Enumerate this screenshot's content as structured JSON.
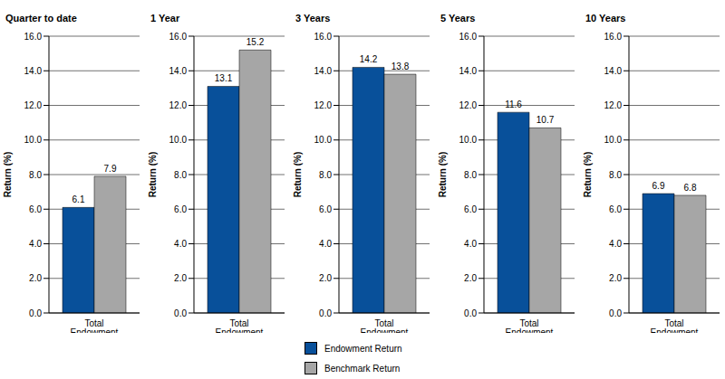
{
  "chart_data": [
    {
      "type": "bar",
      "title": "Quarter to date",
      "categories": [
        "Total Endowment"
      ],
      "y_label": "Return (%)",
      "series": [
        {
          "name": "Endowment Return",
          "color": "#08509a",
          "values": [
            6.1
          ]
        },
        {
          "name": "Benchmark Return",
          "color": "#a6a6a6",
          "values": [
            7.9
          ]
        }
      ],
      "ylim": [
        0,
        16
      ],
      "yticks": [
        {
          "value": 0,
          "label": "0.0"
        },
        {
          "value": 2,
          "label": "2.0"
        },
        {
          "value": 4,
          "label": "4.0"
        },
        {
          "value": 6,
          "label": "6.0"
        },
        {
          "value": 8,
          "label": "8.0"
        },
        {
          "value": 10,
          "label": "10.0"
        },
        {
          "value": 12,
          "label": "12.0"
        },
        {
          "value": 14,
          "label": "14.0"
        },
        {
          "value": 16,
          "label": "16.0"
        }
      ],
      "grid": true,
      "data_labels": true,
      "legend": "bottom"
    },
    {
      "type": "bar",
      "title": "1 Year",
      "categories": [
        "Total Endowment"
      ],
      "y_label": "Return (%)",
      "series": [
        {
          "name": "Endowment Return",
          "color": "#08509a",
          "values": [
            13.1
          ]
        },
        {
          "name": "Benchmark Return",
          "color": "#a6a6a6",
          "values": [
            15.2
          ]
        }
      ],
      "ylim": [
        0,
        16
      ],
      "yticks": [
        {
          "value": 0,
          "label": "0.0"
        },
        {
          "value": 2,
          "label": "2.0"
        },
        {
          "value": 4,
          "label": "4.0"
        },
        {
          "value": 6,
          "label": "6.0"
        },
        {
          "value": 8,
          "label": "8.0"
        },
        {
          "value": 10,
          "label": "10.0"
        },
        {
          "value": 12,
          "label": "12.0"
        },
        {
          "value": 14,
          "label": "14.0"
        },
        {
          "value": 16,
          "label": "16.0"
        }
      ],
      "grid": true,
      "data_labels": true,
      "legend": "bottom"
    },
    {
      "type": "bar",
      "title": "3 Years",
      "categories": [
        "Total Endowment"
      ],
      "y_label": "Return (%)",
      "series": [
        {
          "name": "Endowment Return",
          "color": "#08509a",
          "values": [
            14.2
          ]
        },
        {
          "name": "Benchmark Return",
          "color": "#a6a6a6",
          "values": [
            13.8
          ]
        }
      ],
      "ylim": [
        0,
        16
      ],
      "yticks": [
        {
          "value": 0,
          "label": "0.0"
        },
        {
          "value": 2,
          "label": "2.0"
        },
        {
          "value": 4,
          "label": "4.0"
        },
        {
          "value": 6,
          "label": "6.0"
        },
        {
          "value": 8,
          "label": "8.0"
        },
        {
          "value": 10,
          "label": "10.0"
        },
        {
          "value": 12,
          "label": "12.0"
        },
        {
          "value": 14,
          "label": "14.0"
        },
        {
          "value": 16,
          "label": "16.0"
        }
      ],
      "grid": true,
      "data_labels": true,
      "legend": "bottom"
    },
    {
      "type": "bar",
      "title": "5 Years",
      "categories": [
        "Total Endowment"
      ],
      "y_label": "Return (%)",
      "series": [
        {
          "name": "Endowment Return",
          "color": "#08509a",
          "values": [
            11.6
          ]
        },
        {
          "name": "Benchmark Return",
          "color": "#a6a6a6",
          "values": [
            10.7
          ]
        }
      ],
      "ylim": [
        0,
        16
      ],
      "yticks": [
        {
          "value": 0,
          "label": "0.0"
        },
        {
          "value": 2,
          "label": "2.0"
        },
        {
          "value": 4,
          "label": "4.0"
        },
        {
          "value": 6,
          "label": "6.0"
        },
        {
          "value": 8,
          "label": "8.0"
        },
        {
          "value": 10,
          "label": "10.0"
        },
        {
          "value": 12,
          "label": "12.0"
        },
        {
          "value": 14,
          "label": "14.0"
        },
        {
          "value": 16,
          "label": "16.0"
        }
      ],
      "grid": true,
      "data_labels": true,
      "legend": "bottom"
    },
    {
      "type": "bar",
      "title": "10 Years",
      "categories": [
        "Total Endowment"
      ],
      "y_label": "Return (%)",
      "series": [
        {
          "name": "Endowment Return",
          "color": "#08509a",
          "values": [
            6.9
          ]
        },
        {
          "name": "Benchmark Return",
          "color": "#a6a6a6",
          "values": [
            6.8
          ]
        }
      ],
      "ylim": [
        0,
        16
      ],
      "yticks": [
        {
          "value": 0,
          "label": "0.0"
        },
        {
          "value": 2,
          "label": "2.0"
        },
        {
          "value": 4,
          "label": "4.0"
        },
        {
          "value": 6,
          "label": "6.0"
        },
        {
          "value": 8,
          "label": "8.0"
        },
        {
          "value": 10,
          "label": "10.0"
        },
        {
          "value": 12,
          "label": "12.0"
        },
        {
          "value": 14,
          "label": "14.0"
        },
        {
          "value": 16,
          "label": "16.0"
        }
      ],
      "grid": true,
      "data_labels": true,
      "legend": "bottom"
    }
  ]
}
